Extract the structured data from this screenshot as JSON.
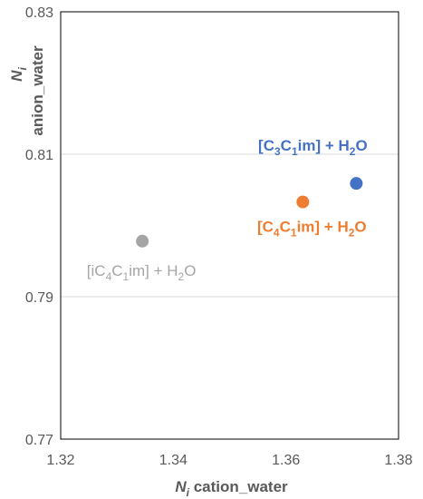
{
  "chart_data": {
    "type": "scatter",
    "xlabel": {
      "symbol": "N",
      "sub": "i",
      "rest": " cation_water"
    },
    "ylabel": {
      "symbol": "N",
      "sub": "i",
      "rest": "anion_water"
    },
    "xlim": [
      1.32,
      1.38
    ],
    "ylim": [
      0.77,
      0.83
    ],
    "x_ticks": [
      "1.32",
      "1.34",
      "1.36",
      "1.38"
    ],
    "y_ticks": [
      "0.77",
      "0.79",
      "0.81",
      "0.83"
    ],
    "grid": {
      "horizontal": true,
      "vertical": false
    },
    "points": [
      {
        "x": 1.3725,
        "y": 0.8059,
        "color": "#4472C4",
        "bold": true,
        "label_parts": [
          {
            "t": "[C"
          },
          {
            "t": "3",
            "sub": true
          },
          {
            "t": "C"
          },
          {
            "t": "1",
            "sub": true
          },
          {
            "t": "im] + H"
          },
          {
            "t": "2",
            "sub": true
          },
          {
            "t": "O"
          }
        ]
      },
      {
        "x": 1.363,
        "y": 0.8033,
        "color": "#ED7D31",
        "bold": true,
        "label_parts": [
          {
            "t": "[C"
          },
          {
            "t": "4",
            "sub": true
          },
          {
            "t": "C"
          },
          {
            "t": "1",
            "sub": true
          },
          {
            "t": "im] + H"
          },
          {
            "t": "2",
            "sub": true
          },
          {
            "t": "O"
          }
        ]
      },
      {
        "x": 1.3345,
        "y": 0.7978,
        "color": "#A5A5A5",
        "bold": false,
        "label_parts": [
          {
            "t": "[iC"
          },
          {
            "t": "4",
            "sub": true
          },
          {
            "t": "C"
          },
          {
            "t": "1",
            "sub": true
          },
          {
            "t": "im] + H"
          },
          {
            "t": "2",
            "sub": true
          },
          {
            "t": "O"
          }
        ]
      }
    ]
  }
}
